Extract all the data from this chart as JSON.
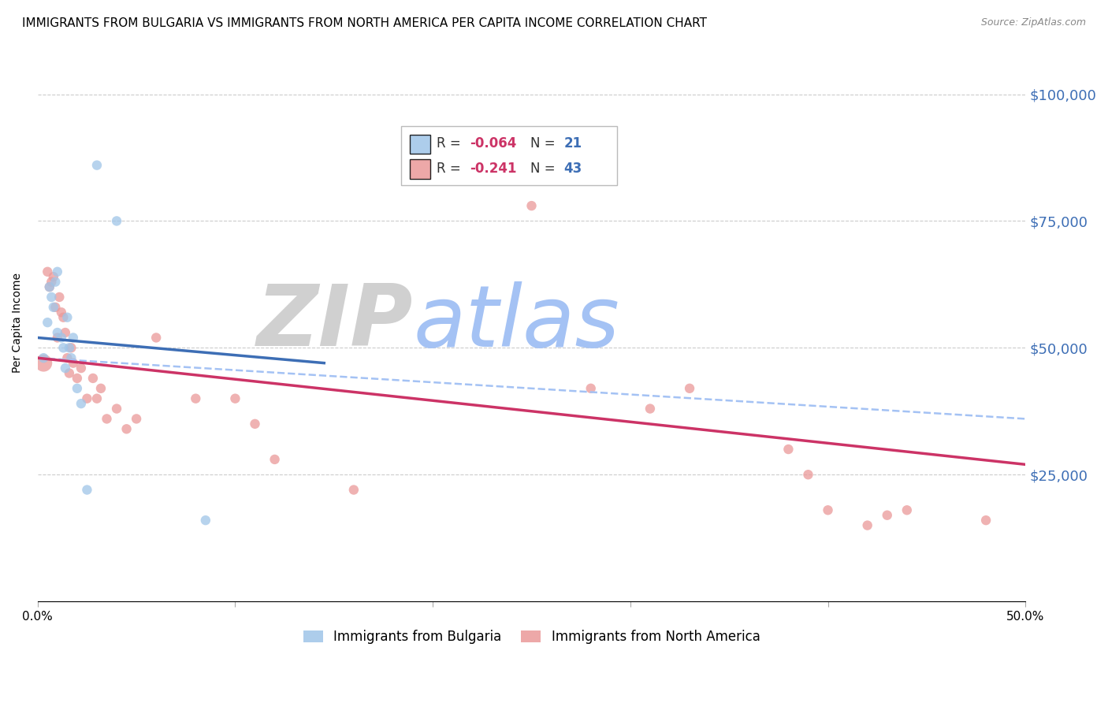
{
  "title": "IMMIGRANTS FROM BULGARIA VS IMMIGRANTS FROM NORTH AMERICA PER CAPITA INCOME CORRELATION CHART",
  "source": "Source: ZipAtlas.com",
  "ylabel": "Per Capita Income",
  "xlim": [
    0.0,
    0.5
  ],
  "ylim": [
    0,
    110000
  ],
  "yticks": [
    0,
    25000,
    50000,
    75000,
    100000
  ],
  "ytick_labels": [
    "",
    "$25,000",
    "$50,000",
    "$75,000",
    "$100,000"
  ],
  "xticks": [
    0.0,
    0.1,
    0.2,
    0.3,
    0.4,
    0.5
  ],
  "xtick_labels": [
    "0.0%",
    "",
    "",
    "",
    "",
    "50.0%"
  ],
  "blue_color": "#9fc5e8",
  "pink_color": "#ea9999",
  "blue_line_color": "#3d6eb5",
  "pink_line_color": "#cc3366",
  "dashed_line_color": "#a4c2f4",
  "watermark_zip": "ZIP",
  "watermark_atlas": "atlas",
  "watermark_zip_color": "#d0d0d0",
  "watermark_atlas_color": "#a4c2f4",
  "background_color": "#ffffff",
  "grid_color": "#cccccc",
  "title_fontsize": 11,
  "tick_label_color_right": "#3d6eb5",
  "blue_scatter_x": [
    0.003,
    0.005,
    0.006,
    0.007,
    0.008,
    0.009,
    0.01,
    0.01,
    0.012,
    0.013,
    0.014,
    0.015,
    0.016,
    0.017,
    0.018,
    0.02,
    0.022,
    0.025,
    0.03,
    0.04,
    0.085
  ],
  "blue_scatter_y": [
    48000,
    55000,
    62000,
    60000,
    58000,
    63000,
    53000,
    65000,
    52000,
    50000,
    46000,
    56000,
    50000,
    48000,
    52000,
    42000,
    39000,
    22000,
    86000,
    75000,
    16000
  ],
  "blue_scatter_size": [
    80,
    80,
    80,
    80,
    80,
    80,
    80,
    80,
    80,
    80,
    80,
    80,
    80,
    80,
    80,
    80,
    80,
    80,
    80,
    80,
    80
  ],
  "pink_scatter_x": [
    0.003,
    0.005,
    0.006,
    0.007,
    0.008,
    0.009,
    0.01,
    0.011,
    0.012,
    0.013,
    0.014,
    0.015,
    0.016,
    0.017,
    0.018,
    0.02,
    0.022,
    0.025,
    0.028,
    0.03,
    0.032,
    0.035,
    0.04,
    0.045,
    0.05,
    0.06,
    0.08,
    0.1,
    0.11,
    0.12,
    0.16,
    0.2,
    0.25,
    0.28,
    0.31,
    0.33,
    0.38,
    0.39,
    0.4,
    0.42,
    0.43,
    0.44,
    0.48
  ],
  "pink_scatter_y": [
    47000,
    65000,
    62000,
    63000,
    64000,
    58000,
    52000,
    60000,
    57000,
    56000,
    53000,
    48000,
    45000,
    50000,
    47000,
    44000,
    46000,
    40000,
    44000,
    40000,
    42000,
    36000,
    38000,
    34000,
    36000,
    52000,
    40000,
    40000,
    35000,
    28000,
    22000,
    88000,
    78000,
    42000,
    38000,
    42000,
    30000,
    25000,
    18000,
    15000,
    17000,
    18000,
    16000
  ],
  "pink_scatter_size": [
    250,
    80,
    80,
    80,
    80,
    80,
    80,
    80,
    80,
    80,
    80,
    80,
    80,
    80,
    80,
    80,
    80,
    80,
    80,
    80,
    80,
    80,
    80,
    80,
    80,
    80,
    80,
    80,
    80,
    80,
    80,
    80,
    80,
    80,
    80,
    80,
    80,
    80,
    80,
    80,
    80,
    80,
    80
  ],
  "blue_line_x0": 0.0,
  "blue_line_x1": 0.145,
  "blue_line_y0": 52000,
  "blue_line_y1": 47000,
  "pink_line_x0": 0.0,
  "pink_line_x1": 0.5,
  "pink_line_y0": 48000,
  "pink_line_y1": 27000,
  "dash_line_x0": 0.0,
  "dash_line_x1": 0.5,
  "dash_line_y0": 48000,
  "dash_line_y1": 36000
}
